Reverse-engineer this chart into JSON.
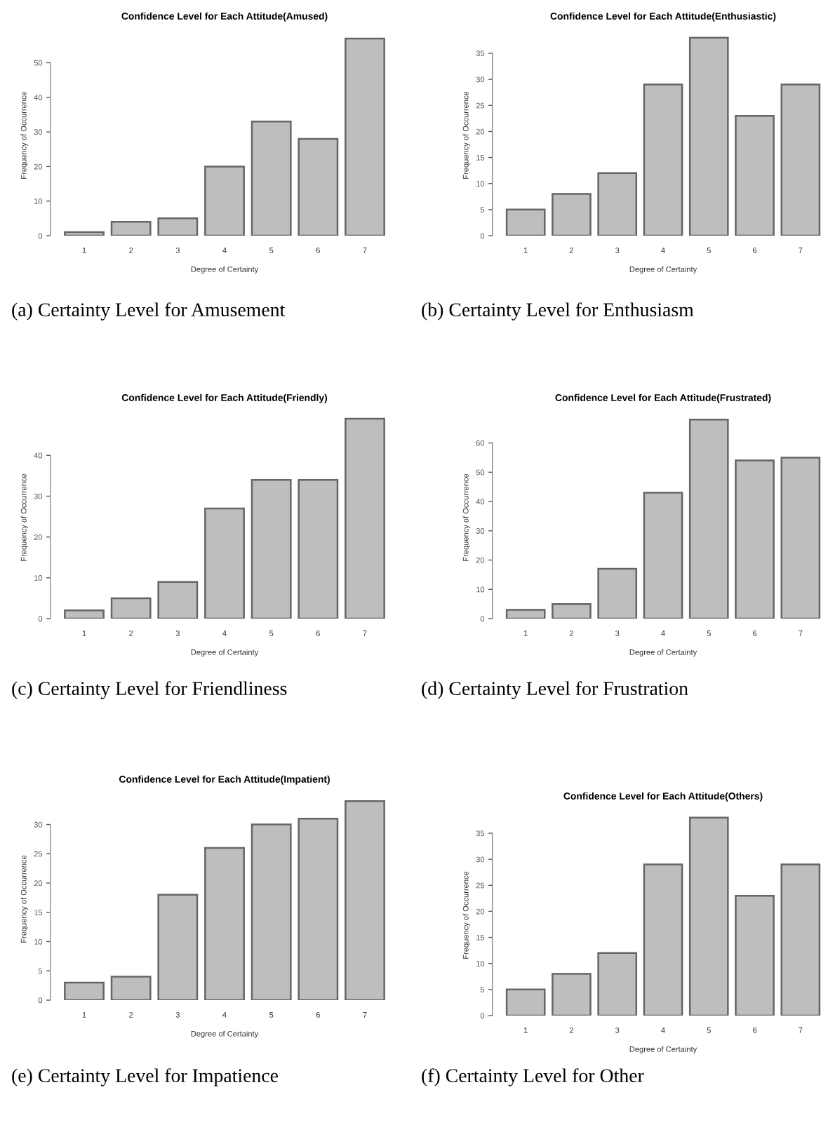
{
  "chart_data": [
    {
      "type": "bar",
      "title": "Confidence Level for Each Attitude(Amused)",
      "xlabel": "Degree of Certainty",
      "ylabel": "Frequency of Occurrence",
      "categories": [
        "1",
        "2",
        "3",
        "4",
        "5",
        "6",
        "7"
      ],
      "values": [
        1,
        4,
        5,
        20,
        33,
        28,
        57
      ],
      "color": "#bebebe",
      "ylim": [
        0,
        58
      ],
      "yticks": [
        0,
        10,
        20,
        30,
        40,
        50
      ],
      "grid": false,
      "legend": false,
      "annotations": [
        "(a) Certainty Level for Amusement"
      ]
    },
    {
      "type": "bar",
      "title": "Confidence Level for Each Attitude(Enthusiastic)",
      "xlabel": "Degree of Certainty",
      "ylabel": "Frequency of Occurrence",
      "categories": [
        "1",
        "2",
        "3",
        "4",
        "5",
        "6",
        "7"
      ],
      "values": [
        5,
        8,
        12,
        29,
        38,
        23,
        29
      ],
      "color": "#bebebe",
      "ylim": [
        0,
        38.5
      ],
      "yticks": [
        0,
        5,
        10,
        15,
        20,
        25,
        30,
        35
      ],
      "grid": false,
      "legend": false,
      "annotations": [
        "(b) Certainty Level for Enthusiasm"
      ]
    },
    {
      "type": "bar",
      "title": "Confidence Level for Each Attitude(Friendly)",
      "xlabel": "Degree of Certainty",
      "ylabel": "Frequency of Occurrence",
      "categories": [
        "1",
        "2",
        "3",
        "4",
        "5",
        "6",
        "7"
      ],
      "values": [
        2,
        5,
        9,
        27,
        34,
        34,
        49
      ],
      "color": "#bebebe",
      "ylim": [
        0,
        49.5
      ],
      "yticks": [
        0,
        10,
        20,
        30,
        40
      ],
      "grid": false,
      "legend": false,
      "annotations": [
        "(c) Certainty Level for Friendliness"
      ]
    },
    {
      "type": "bar",
      "title": "Confidence Level for Each Attitude(Frustrated)",
      "xlabel": "Degree of Certainty",
      "ylabel": "Frequency of Occurrence",
      "categories": [
        "1",
        "2",
        "3",
        "4",
        "5",
        "6",
        "7"
      ],
      "values": [
        3,
        5,
        17,
        43,
        68,
        54,
        55
      ],
      "color": "#bebebe",
      "ylim": [
        0,
        69
      ],
      "yticks": [
        0,
        10,
        20,
        30,
        40,
        50,
        60
      ],
      "grid": false,
      "legend": false,
      "annotations": [
        "(d) Certainty Level for Frustration"
      ]
    },
    {
      "type": "bar",
      "title": "Confidence Level for Each Attitude(Impatient)",
      "xlabel": "Degree of Certainty",
      "ylabel": "Frequency of Occurrence",
      "categories": [
        "1",
        "2",
        "3",
        "4",
        "5",
        "6",
        "7"
      ],
      "values": [
        3,
        4,
        18,
        26,
        30,
        31,
        34
      ],
      "color": "#bebebe",
      "ylim": [
        0,
        34.5
      ],
      "yticks": [
        0,
        5,
        10,
        15,
        20,
        25,
        30
      ],
      "grid": false,
      "legend": false,
      "annotations": [
        "(e) Certainty Level for Impatience"
      ]
    },
    {
      "type": "bar",
      "title": "Confidence Level for Each Attitude(Others)",
      "xlabel": "Degree of Certainty",
      "ylabel": "Frequency of Occurrence",
      "categories": [
        "1",
        "2",
        "3",
        "4",
        "5",
        "6",
        "7"
      ],
      "values": [
        5,
        8,
        12,
        29,
        38,
        23,
        29
      ],
      "color": "#bebebe",
      "ylim": [
        0,
        38.5
      ],
      "yticks": [
        0,
        5,
        10,
        15,
        20,
        25,
        30,
        35
      ],
      "grid": false,
      "legend": false,
      "annotations": [
        "(f) Certainty Level for Other"
      ]
    }
  ]
}
